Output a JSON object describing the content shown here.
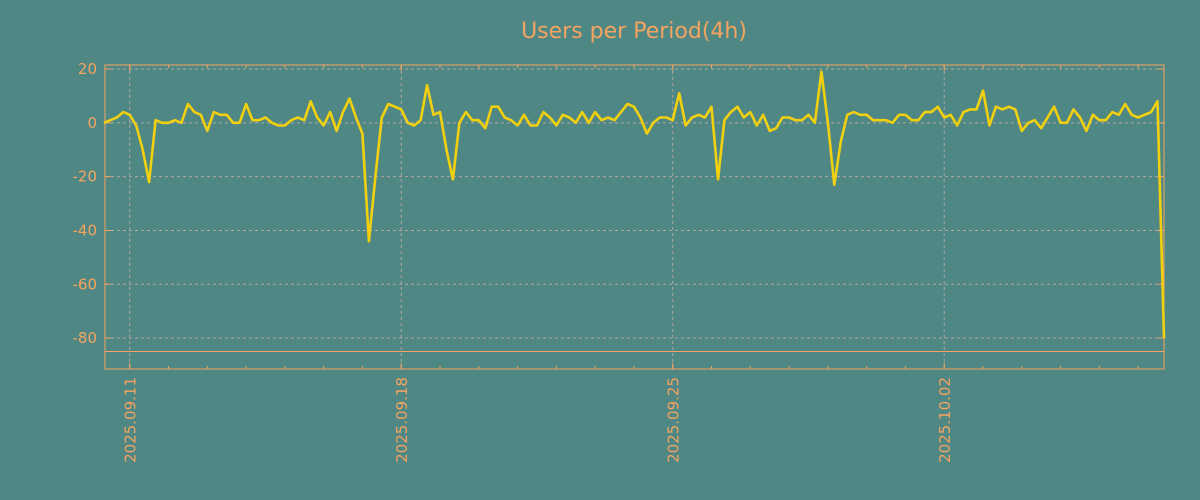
{
  "chart_data": {
    "type": "line",
    "title": "Users per Period(4h)",
    "xlabel": "",
    "ylabel": "",
    "x_unit": "hours since 2025.09.11 00:00",
    "x_start_hours": -16,
    "x_step_hours": 4,
    "ylim": [
      -91.5,
      21.5
    ],
    "y_ticks": [
      20,
      0,
      -20,
      -40,
      -60,
      -80
    ],
    "y_tick_labels": [
      "20",
      "0",
      "-20",
      "-40",
      "-60",
      "-80"
    ],
    "x_ticks": [
      {
        "label": "2025.09.11",
        "day": 0
      },
      {
        "label": "2025.09.18",
        "day": 7
      },
      {
        "label": "2025.09.25",
        "day": 14
      },
      {
        "label": "2025.10.02",
        "day": 21
      }
    ],
    "reference_line": -85,
    "grid": true,
    "colors": {
      "background": "#4f8784",
      "line": "#f2d00e",
      "axis": "#f4a460",
      "grid": "#b0a8a0"
    },
    "series": [
      {
        "name": "Users",
        "values": [
          0,
          1,
          2,
          4,
          3,
          -1,
          -10,
          -22,
          1,
          0,
          0,
          1,
          0,
          7,
          4,
          3,
          -3,
          4,
          3,
          3,
          0,
          0,
          7,
          1,
          1,
          2,
          0,
          -1,
          -1,
          1,
          2,
          1,
          8,
          2,
          -1,
          4,
          -3,
          4,
          9,
          2,
          -4,
          -44,
          -20,
          2,
          7,
          6,
          5,
          0,
          -1,
          1,
          14,
          3,
          4,
          -10,
          -21,
          0,
          4,
          1,
          1,
          -2,
          6,
          6,
          2,
          1,
          -1,
          3,
          -1,
          -1,
          4,
          2,
          -1,
          3,
          2,
          0,
          4,
          0,
          4,
          1,
          2,
          1,
          4,
          7,
          6,
          2,
          -4,
          0,
          2,
          2,
          1,
          11,
          -1,
          2,
          3,
          2,
          6,
          -21,
          1,
          4,
          6,
          2,
          4,
          -1,
          3,
          -3,
          -2,
          2,
          2,
          1,
          1,
          3,
          0,
          19,
          0,
          -23,
          -7,
          3,
          4,
          3,
          3,
          1,
          1,
          1,
          0,
          3,
          3,
          1,
          1,
          4,
          4,
          6,
          2,
          3,
          -1,
          4,
          5,
          5,
          12,
          -1,
          6,
          5,
          6,
          5,
          -3,
          0,
          1,
          -2,
          2,
          6,
          0,
          0,
          5,
          2,
          -3,
          3,
          1,
          1,
          4,
          3,
          7,
          3,
          2,
          3,
          4,
          8,
          -80
        ]
      }
    ]
  }
}
